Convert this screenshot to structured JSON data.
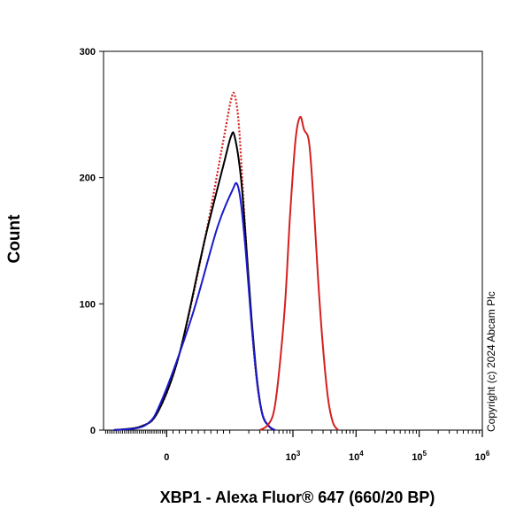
{
  "chart_data": {
    "type": "line",
    "xlabel": "XBP1 - Alexa Fluor® 647 (660/20 BP)",
    "ylabel": "Count",
    "y_ticks": [
      0,
      100,
      200,
      300
    ],
    "ylim": [
      0,
      300
    ],
    "x_scale": "biexponential",
    "x_ticks": [
      "0",
      "10^3",
      "10^4",
      "10^5",
      "10^6"
    ],
    "grid": false,
    "legend": "none",
    "copyright": "Copyright (c) 2024 Abcam Plc",
    "series": [
      {
        "color": "#d42020",
        "style": "dotted",
        "points": [
          [
            -250,
            0
          ],
          [
            -120,
            3
          ],
          [
            -40,
            15
          ],
          [
            20,
            60
          ],
          [
            60,
            150
          ],
          [
            90,
            230
          ],
          [
            105,
            262
          ],
          [
            120,
            265
          ],
          [
            140,
            240
          ],
          [
            170,
            170
          ],
          [
            210,
            100
          ],
          [
            260,
            45
          ],
          [
            320,
            15
          ],
          [
            400,
            4
          ],
          [
            500,
            0
          ]
        ]
      },
      {
        "color": "#000000",
        "style": "solid",
        "points": [
          [
            -250,
            0
          ],
          [
            -120,
            3
          ],
          [
            -40,
            15
          ],
          [
            20,
            60
          ],
          [
            60,
            150
          ],
          [
            90,
            210
          ],
          [
            105,
            233
          ],
          [
            120,
            232
          ],
          [
            150,
            200
          ],
          [
            180,
            150
          ],
          [
            220,
            90
          ],
          [
            270,
            40
          ],
          [
            330,
            12
          ],
          [
            420,
            3
          ],
          [
            520,
            0
          ]
        ]
      },
      {
        "color": "#1a1acc",
        "style": "solid",
        "points": [
          [
            -250,
            0
          ],
          [
            -100,
            4
          ],
          [
            -20,
            25
          ],
          [
            40,
            90
          ],
          [
            80,
            160
          ],
          [
            110,
            190
          ],
          [
            130,
            195
          ],
          [
            150,
            180
          ],
          [
            180,
            140
          ],
          [
            220,
            85
          ],
          [
            270,
            38
          ],
          [
            330,
            12
          ],
          [
            420,
            3
          ],
          [
            520,
            0
          ]
        ]
      },
      {
        "color": "#d42020",
        "style": "solid",
        "points": [
          [
            300,
            0
          ],
          [
            400,
            4
          ],
          [
            500,
            15
          ],
          [
            600,
            45
          ],
          [
            750,
            100
          ],
          [
            900,
            170
          ],
          [
            1100,
            230
          ],
          [
            1300,
            248
          ],
          [
            1500,
            238
          ],
          [
            1800,
            228
          ],
          [
            2100,
            185
          ],
          [
            2500,
            120
          ],
          [
            3000,
            65
          ],
          [
            3600,
            25
          ],
          [
            4300,
            6
          ],
          [
            5200,
            0
          ]
        ]
      }
    ]
  }
}
